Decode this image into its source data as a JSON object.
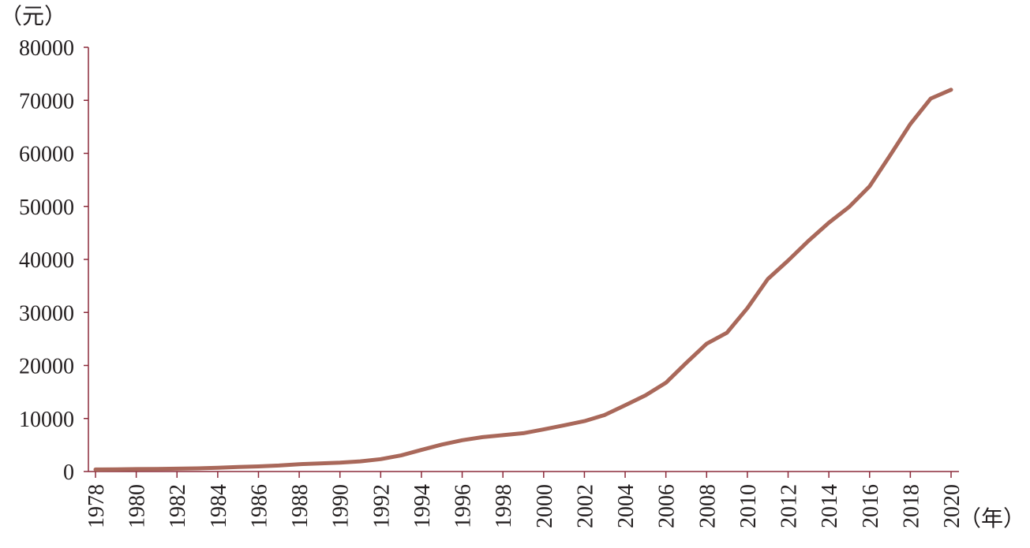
{
  "chart_data": {
    "type": "line",
    "ylabel": "（元）",
    "xlabel": "（年）",
    "ylim": [
      0,
      80000
    ],
    "yticks": [
      0,
      10000,
      20000,
      30000,
      40000,
      50000,
      60000,
      70000,
      80000
    ],
    "xlim": [
      1978,
      2020
    ],
    "xtick_labels": [
      "1978",
      "1980",
      "1982",
      "1984",
      "1986",
      "1988",
      "1990",
      "1992",
      "1994",
      "1996",
      "1998",
      "2000",
      "2002",
      "2004",
      "2006",
      "2008",
      "2010",
      "2012",
      "2014",
      "2016",
      "2018",
      "2020"
    ],
    "grid": false,
    "axis_color": "#8b2a3a",
    "line_color": "#a9685a",
    "series": [
      {
        "x": [
          1978,
          1979,
          1980,
          1981,
          1982,
          1983,
          1984,
          1985,
          1986,
          1987,
          1988,
          1989,
          1990,
          1991,
          1992,
          1993,
          1994,
          1995,
          1996,
          1997,
          1998,
          1999,
          2000,
          2001,
          2002,
          2003,
          2004,
          2005,
          2006,
          2007,
          2008,
          2009,
          2010,
          2011,
          2012,
          2013,
          2014,
          2015,
          2016,
          2017,
          2018,
          2019,
          2020
        ],
        "values": [
          385,
          423,
          468,
          497,
          533,
          588,
          702,
          866,
          973,
          1123,
          1378,
          1536,
          1663,
          1912,
          2334,
          3027,
          4081,
          5091,
          5898,
          6481,
          6860,
          7229,
          7942,
          8717,
          9506,
          10666,
          12487,
          14368,
          16738,
          20494,
          24100,
          26180,
          30808,
          36277,
          39771,
          43497,
          46912,
          49922,
          53783,
          59592,
          65534,
          70328,
          72000
        ]
      }
    ]
  }
}
